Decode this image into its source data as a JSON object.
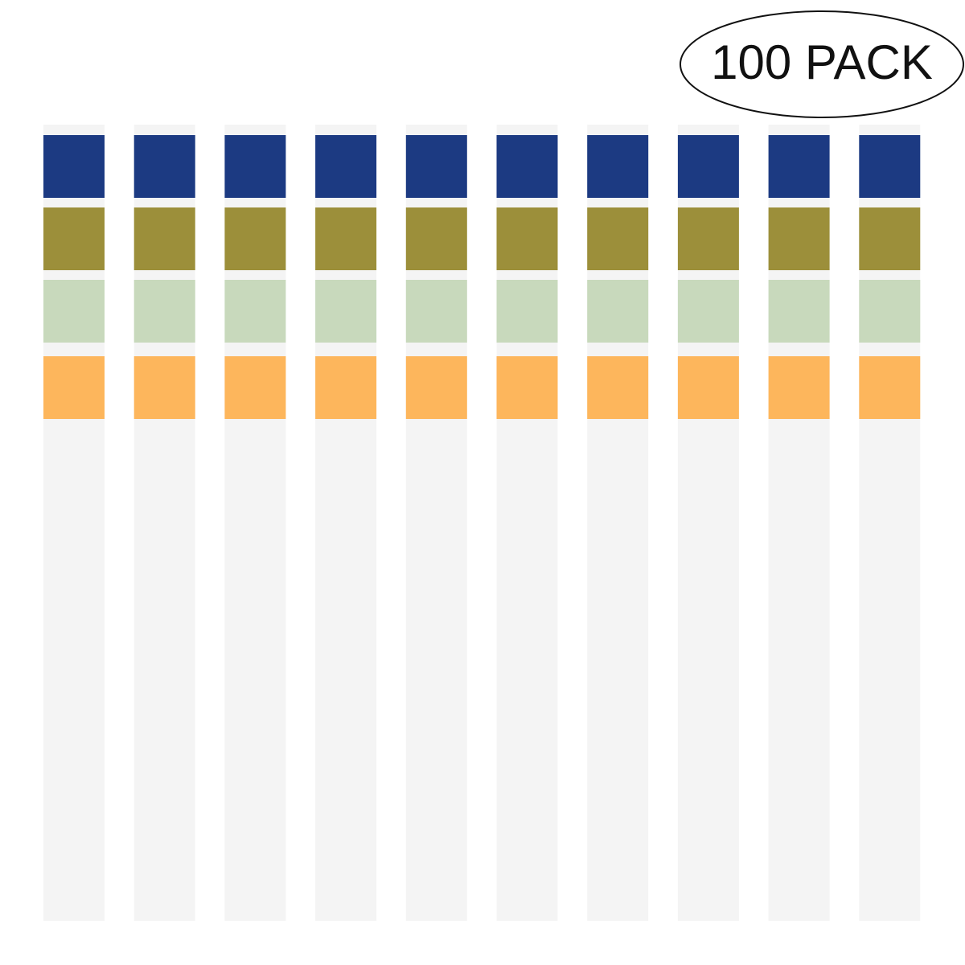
{
  "badge": {
    "text": "100 PACK"
  }
}
